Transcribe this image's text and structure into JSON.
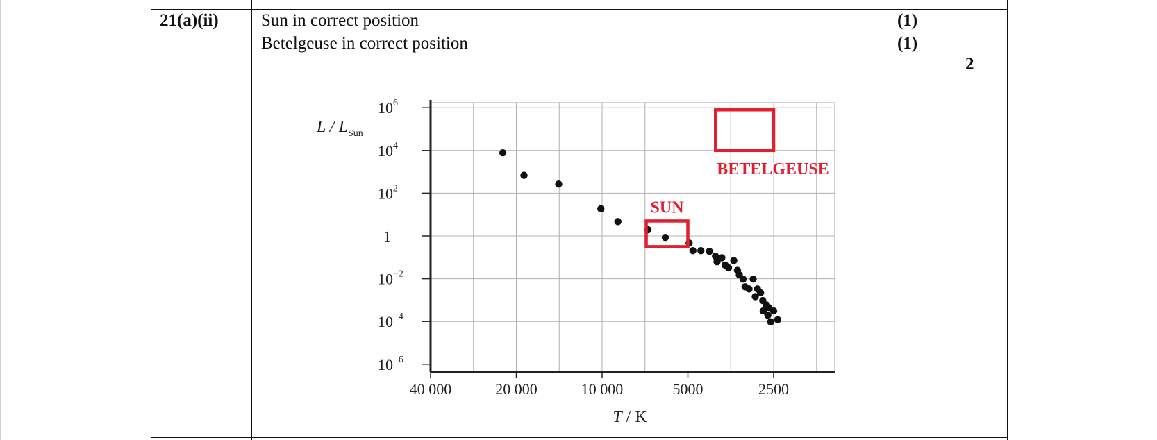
{
  "question": {
    "number": "21(a)(ii)"
  },
  "answers": [
    {
      "text": "Sun in correct position",
      "mark": "(1)"
    },
    {
      "text": "Betelgeuse in correct position",
      "mark": "(1)"
    }
  ],
  "total_marks": "2",
  "chart_data": {
    "type": "scatter",
    "title": "",
    "ylabel_main": "L / L",
    "ylabel_sub": "Sun",
    "xlabel_italic": "T",
    "xlabel_rest": " / K",
    "x_scale": "log, reversed",
    "y_scale": "log",
    "xlim": [
      40000,
      2000
    ],
    "ylim_log10": [
      -6,
      6
    ],
    "grid": true,
    "x_ticks": [
      {
        "value": 40000,
        "label": "40 000"
      },
      {
        "value": 20000,
        "label": "20 000"
      },
      {
        "value": 10000,
        "label": "10 000"
      },
      {
        "value": 5000,
        "label": "5000"
      },
      {
        "value": 2500,
        "label": "2500"
      }
    ],
    "y_ticks": [
      {
        "exp": 6,
        "base": "10",
        "sup": "6"
      },
      {
        "exp": 4,
        "base": "10",
        "sup": "4"
      },
      {
        "exp": 2,
        "base": "10",
        "sup": "2"
      },
      {
        "exp": 0,
        "base": "1",
        "sup": ""
      },
      {
        "exp": -2,
        "base": "10",
        "sup": "−2"
      },
      {
        "exp": -4,
        "base": "10",
        "sup": "−4"
      },
      {
        "exp": -6,
        "base": "10",
        "sup": "−6"
      }
    ],
    "points": [
      {
        "T": 22300,
        "log10L": 3.89
      },
      {
        "T": 18800,
        "log10L": 2.84
      },
      {
        "T": 14200,
        "log10L": 2.43
      },
      {
        "T": 10100,
        "log10L": 1.27
      },
      {
        "T": 8800,
        "log10L": 0.67
      },
      {
        "T": 6900,
        "log10L": 0.29
      },
      {
        "T": 6000,
        "log10L": -0.07
      },
      {
        "T": 4950,
        "log10L": -0.33
      },
      {
        "T": 4800,
        "log10L": -0.69
      },
      {
        "T": 4500,
        "log10L": -0.69
      },
      {
        "T": 4200,
        "log10L": -0.72
      },
      {
        "T": 4000,
        "log10L": -0.95
      },
      {
        "T": 3950,
        "log10L": -1.21
      },
      {
        "T": 3800,
        "log10L": -1.02
      },
      {
        "T": 3700,
        "log10L": -1.36
      },
      {
        "T": 3600,
        "log10L": -1.49
      },
      {
        "T": 3450,
        "log10L": -1.15
      },
      {
        "T": 3350,
        "log10L": -1.61
      },
      {
        "T": 3300,
        "log10L": -1.82
      },
      {
        "T": 3200,
        "log10L": -2.02
      },
      {
        "T": 3150,
        "log10L": -2.38
      },
      {
        "T": 3050,
        "log10L": -2.48
      },
      {
        "T": 2950,
        "log10L": -2.02
      },
      {
        "T": 2900,
        "log10L": -2.84
      },
      {
        "T": 2850,
        "log10L": -2.48
      },
      {
        "T": 2780,
        "log10L": -2.66
      },
      {
        "T": 2730,
        "log10L": -3.02
      },
      {
        "T": 2720,
        "log10L": -3.51
      },
      {
        "T": 2650,
        "log10L": -3.23
      },
      {
        "T": 2620,
        "log10L": -3.71
      },
      {
        "T": 2600,
        "log10L": -3.35
      },
      {
        "T": 2560,
        "log10L": -4.02
      },
      {
        "T": 2500,
        "log10L": -3.51
      },
      {
        "T": 2420,
        "log10L": -3.92
      }
    ],
    "annotations": [
      {
        "name": "sun-box",
        "label": "SUN",
        "T_range": [
          7000,
          5000
        ],
        "log10L_range": [
          -0.5,
          0.7
        ],
        "color": "#e0202e"
      },
      {
        "name": "betelgeuse-box",
        "label": "BETELGEUSE",
        "T_range": [
          4000,
          2500
        ],
        "log10L_range": [
          4.0,
          5.9
        ],
        "color": "#e0202e"
      }
    ]
  }
}
